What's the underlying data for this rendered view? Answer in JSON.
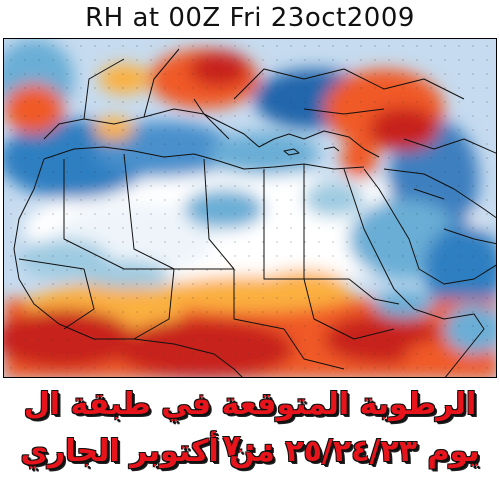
{
  "title": "RH at 00Z Fri 23oct2009",
  "caption": {
    "line1": "الرطوبة المتوقعة في طبقة ال ٧٠٠",
    "line2": "يوم ٢٥/٢٤/٢٣ من أكتوبر الجاري"
  },
  "colors": {
    "very_moist": "#c8201c",
    "moist": "#f05a28",
    "moderate": "#fbb040",
    "neutral": "#ffffff",
    "dry_light": "#c6dbef",
    "dry": "#6baed6",
    "very_dry": "#2166ac",
    "borders": "#111111",
    "caption_text": "#e8141c"
  }
}
